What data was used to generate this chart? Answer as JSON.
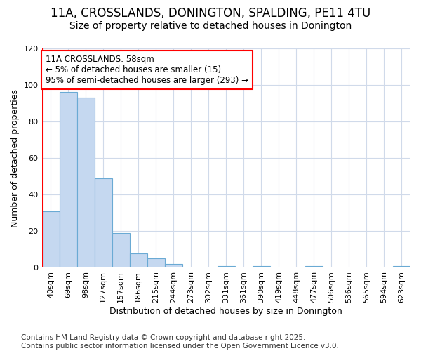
{
  "title_line1": "11A, CROSSLANDS, DONINGTON, SPALDING, PE11 4TU",
  "title_line2": "Size of property relative to detached houses in Donington",
  "xlabel": "Distribution of detached houses by size in Donington",
  "ylabel": "Number of detached properties",
  "categories": [
    "40sqm",
    "69sqm",
    "98sqm",
    "127sqm",
    "157sqm",
    "186sqm",
    "215sqm",
    "244sqm",
    "273sqm",
    "302sqm",
    "331sqm",
    "361sqm",
    "390sqm",
    "419sqm",
    "448sqm",
    "477sqm",
    "506sqm",
    "536sqm",
    "565sqm",
    "594sqm",
    "623sqm"
  ],
  "values": [
    31,
    96,
    93,
    49,
    19,
    8,
    5,
    2,
    0,
    0,
    1,
    0,
    1,
    0,
    0,
    1,
    0,
    0,
    0,
    0,
    1
  ],
  "bar_color": "#c5d8f0",
  "bar_edge_color": "#6aaad4",
  "annotation_line1": "11A CROSSLANDS: 58sqm",
  "annotation_line2": "← 5% of detached houses are smaller (15)",
  "annotation_line3": "95% of semi-detached houses are larger (293) →",
  "annotation_box_color": "white",
  "annotation_box_edge_color": "red",
  "vline_color": "red",
  "vline_x": -0.5,
  "ylim": [
    0,
    120
  ],
  "yticks": [
    0,
    20,
    40,
    60,
    80,
    100,
    120
  ],
  "background_color": "#ffffff",
  "grid_color": "#d0daea",
  "footer_text": "Contains HM Land Registry data © Crown copyright and database right 2025.\nContains public sector information licensed under the Open Government Licence v3.0.",
  "title_fontsize": 12,
  "subtitle_fontsize": 10,
  "axis_label_fontsize": 9,
  "tick_fontsize": 8,
  "annotation_fontsize": 8.5,
  "footer_fontsize": 7.5
}
